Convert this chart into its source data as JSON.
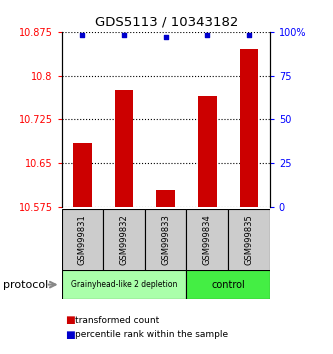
{
  "title": "GDS5113 / 10343182",
  "samples": [
    "GSM999831",
    "GSM999832",
    "GSM999833",
    "GSM999834",
    "GSM999835"
  ],
  "red_values": [
    10.685,
    10.775,
    10.605,
    10.765,
    10.845
  ],
  "blue_values": [
    98,
    98,
    97,
    98,
    98
  ],
  "ylim_left": [
    10.575,
    10.875
  ],
  "ylim_right": [
    0,
    100
  ],
  "yticks_left": [
    10.575,
    10.65,
    10.725,
    10.8,
    10.875
  ],
  "yticks_right": [
    0,
    25,
    50,
    75,
    100
  ],
  "ytick_labels_left": [
    "10.575",
    "10.65",
    "10.725",
    "10.8",
    "10.875"
  ],
  "ytick_labels_right": [
    "0",
    "25",
    "50",
    "75",
    "100%"
  ],
  "bar_color": "#cc0000",
  "dot_color": "#0000cc",
  "group1_indices": [
    0,
    1,
    2
  ],
  "group2_indices": [
    3,
    4
  ],
  "group1_label": "Grainyhead-like 2 depletion",
  "group2_label": "control",
  "group1_color": "#aaffaa",
  "group2_color": "#44ee44",
  "protocol_label": "protocol",
  "legend_red": "transformed count",
  "legend_blue": "percentile rank within the sample",
  "bar_width": 0.45,
  "background_color": "#ffffff"
}
